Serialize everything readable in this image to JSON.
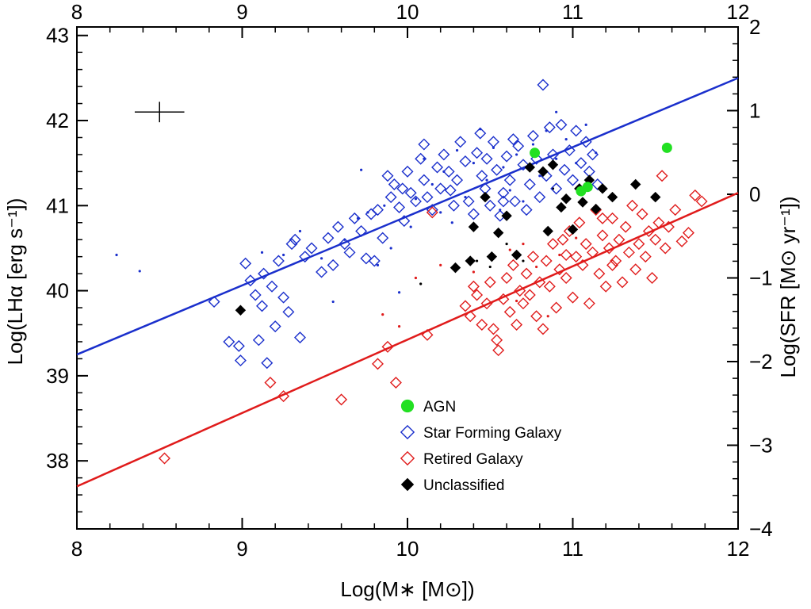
{
  "chart_data": {
    "type": "scatter",
    "xlabel": "Log(M∗ [M⊙])",
    "ylabel": "Log(LHα [erg s⁻¹])",
    "y2label": "Log(SFR [M⊙ yr⁻¹])",
    "xlim": [
      8,
      12
    ],
    "ylim": [
      37.2,
      43.1
    ],
    "y2lim": [
      -4,
      2
    ],
    "x_ticks": [
      8,
      9,
      10,
      11,
      12
    ],
    "y_ticks": [
      38,
      39,
      40,
      41,
      42,
      43
    ],
    "y2_ticks": [
      -4,
      -3,
      -2,
      -1,
      0,
      1,
      2
    ],
    "grid": false,
    "legend_position": "lower-center",
    "error_cross": {
      "x": 8.5,
      "y": 42.1,
      "dx": 0.15,
      "dy": 0.12
    },
    "fit_lines": [
      {
        "name": "Star Forming Galaxy",
        "color": "#1a2fcc",
        "x": [
          8,
          12
        ],
        "y": [
          39.25,
          42.5
        ]
      },
      {
        "name": "Retired Galaxy",
        "color": "#e01b1b",
        "x": [
          8,
          12
        ],
        "y": [
          37.7,
          41.15
        ]
      }
    ],
    "series": [
      {
        "name": "AGN",
        "marker": "circle",
        "color": "#22e022",
        "points": [
          [
            10.77,
            41.62
          ],
          [
            11.05,
            41.17
          ],
          [
            11.09,
            41.22
          ],
          [
            11.57,
            41.68
          ]
        ]
      },
      {
        "name": "Star Forming Galaxy",
        "marker": "diamond-open",
        "color": "#1a2fcc",
        "points": [
          [
            8.83,
            39.87
          ],
          [
            8.92,
            39.4
          ],
          [
            8.98,
            39.35
          ],
          [
            8.99,
            39.18
          ],
          [
            9.02,
            40.32
          ],
          [
            9.05,
            40.12
          ],
          [
            9.08,
            39.95
          ],
          [
            9.1,
            39.42
          ],
          [
            9.12,
            39.82
          ],
          [
            9.13,
            40.2
          ],
          [
            9.15,
            39.15
          ],
          [
            9.18,
            40.05
          ],
          [
            9.2,
            39.58
          ],
          [
            9.22,
            40.35
          ],
          [
            9.25,
            39.92
          ],
          [
            9.28,
            39.75
          ],
          [
            9.3,
            40.55
          ],
          [
            9.32,
            40.6
          ],
          [
            9.35,
            39.45
          ],
          [
            9.38,
            40.4
          ],
          [
            9.42,
            40.5
          ],
          [
            9.48,
            40.22
          ],
          [
            9.52,
            40.62
          ],
          [
            9.55,
            40.3
          ],
          [
            9.58,
            40.75
          ],
          [
            9.62,
            40.55
          ],
          [
            9.65,
            40.45
          ],
          [
            9.68,
            40.85
          ],
          [
            9.72,
            40.7
          ],
          [
            9.75,
            40.38
          ],
          [
            9.78,
            40.9
          ],
          [
            9.8,
            40.35
          ],
          [
            9.82,
            40.95
          ],
          [
            9.85,
            40.62
          ],
          [
            9.88,
            41.35
          ],
          [
            9.9,
            41.1
          ],
          [
            9.92,
            41.25
          ],
          [
            9.95,
            40.98
          ],
          [
            9.97,
            41.2
          ],
          [
            10.0,
            41.4
          ],
          [
            10.02,
            41.15
          ],
          [
            10.05,
            41.05
          ],
          [
            10.08,
            41.55
          ],
          [
            10.1,
            41.3
          ],
          [
            10.12,
            41.1
          ],
          [
            10.15,
            40.95
          ],
          [
            10.18,
            41.45
          ],
          [
            10.2,
            41.2
          ],
          [
            10.22,
            41.6
          ],
          [
            10.25,
            41.4
          ],
          [
            10.28,
            41.0
          ],
          [
            10.3,
            41.3
          ],
          [
            10.32,
            41.75
          ],
          [
            10.35,
            41.52
          ],
          [
            10.37,
            41.05
          ],
          [
            10.4,
            40.9
          ],
          [
            10.42,
            41.62
          ],
          [
            10.45,
            41.35
          ],
          [
            10.47,
            41.2
          ],
          [
            10.48,
            41.55
          ],
          [
            10.5,
            41.0
          ],
          [
            10.52,
            41.75
          ],
          [
            10.54,
            41.42
          ],
          [
            10.56,
            40.88
          ],
          [
            10.58,
            41.15
          ],
          [
            10.6,
            41.58
          ],
          [
            10.62,
            41.3
          ],
          [
            10.65,
            41.05
          ],
          [
            10.67,
            41.7
          ],
          [
            10.7,
            41.48
          ],
          [
            10.72,
            40.95
          ],
          [
            10.74,
            41.25
          ],
          [
            10.76,
            41.82
          ],
          [
            10.78,
            41.55
          ],
          [
            10.8,
            41.1
          ],
          [
            10.82,
            42.42
          ],
          [
            10.84,
            41.35
          ],
          [
            10.86,
            41.92
          ],
          [
            10.88,
            41.6
          ],
          [
            10.9,
            41.2
          ],
          [
            10.93,
            41.95
          ],
          [
            10.95,
            41.42
          ],
          [
            10.98,
            41.65
          ],
          [
            11.0,
            41.3
          ],
          [
            11.02,
            41.88
          ],
          [
            11.05,
            41.5
          ],
          [
            11.08,
            41.75
          ],
          [
            11.1,
            41.4
          ],
          [
            11.12,
            41.6
          ],
          [
            11.15,
            41.25
          ],
          [
            10.44,
            41.85
          ],
          [
            10.58,
            41.05
          ],
          [
            10.64,
            41.78
          ],
          [
            10.26,
            41.18
          ],
          [
            10.1,
            41.72
          ],
          [
            9.98,
            40.82
          ]
        ]
      },
      {
        "name": "Retired Galaxy",
        "marker": "diamond-open",
        "color": "#e01b1b",
        "points": [
          [
            8.53,
            38.03
          ],
          [
            9.17,
            38.92
          ],
          [
            9.25,
            38.76
          ],
          [
            9.6,
            38.72
          ],
          [
            9.82,
            39.14
          ],
          [
            9.88,
            39.34
          ],
          [
            9.93,
            38.92
          ],
          [
            10.12,
            39.48
          ],
          [
            10.15,
            40.92
          ],
          [
            10.35,
            39.82
          ],
          [
            10.38,
            39.7
          ],
          [
            10.4,
            40.05
          ],
          [
            10.42,
            39.95
          ],
          [
            10.45,
            39.6
          ],
          [
            10.48,
            39.85
          ],
          [
            10.5,
            40.1
          ],
          [
            10.52,
            39.55
          ],
          [
            10.54,
            39.42
          ],
          [
            10.55,
            39.3
          ],
          [
            10.58,
            39.9
          ],
          [
            10.6,
            40.15
          ],
          [
            10.62,
            39.75
          ],
          [
            10.64,
            40.3
          ],
          [
            10.66,
            39.6
          ],
          [
            10.68,
            40.0
          ],
          [
            10.7,
            39.85
          ],
          [
            10.72,
            40.2
          ],
          [
            10.74,
            39.95
          ],
          [
            10.76,
            40.4
          ],
          [
            10.78,
            39.7
          ],
          [
            10.8,
            40.1
          ],
          [
            10.82,
            39.55
          ],
          [
            10.84,
            40.35
          ],
          [
            10.86,
            40.05
          ],
          [
            10.88,
            40.55
          ],
          [
            10.9,
            39.8
          ],
          [
            10.92,
            40.25
          ],
          [
            10.94,
            40.6
          ],
          [
            10.96,
            40.15
          ],
          [
            10.98,
            40.7
          ],
          [
            11.0,
            39.92
          ],
          [
            11.02,
            40.4
          ],
          [
            11.04,
            40.8
          ],
          [
            11.06,
            40.3
          ],
          [
            11.08,
            40.55
          ],
          [
            11.1,
            39.85
          ],
          [
            11.12,
            40.45
          ],
          [
            11.14,
            40.95
          ],
          [
            11.16,
            40.2
          ],
          [
            11.18,
            40.65
          ],
          [
            11.2,
            40.05
          ],
          [
            11.22,
            40.5
          ],
          [
            11.24,
            40.85
          ],
          [
            11.26,
            40.35
          ],
          [
            11.28,
            40.6
          ],
          [
            11.3,
            40.1
          ],
          [
            11.32,
            40.75
          ],
          [
            11.34,
            40.45
          ],
          [
            11.36,
            41.0
          ],
          [
            11.38,
            40.25
          ],
          [
            11.4,
            40.55
          ],
          [
            11.42,
            40.9
          ],
          [
            11.44,
            40.4
          ],
          [
            11.46,
            40.7
          ],
          [
            11.48,
            40.15
          ],
          [
            11.5,
            40.6
          ],
          [
            11.52,
            40.8
          ],
          [
            11.54,
            41.35
          ],
          [
            11.56,
            40.5
          ],
          [
            11.58,
            40.75
          ],
          [
            11.62,
            40.95
          ],
          [
            11.66,
            40.58
          ],
          [
            11.7,
            40.68
          ],
          [
            11.74,
            41.12
          ],
          [
            11.78,
            41.05
          ],
          [
            11.18,
            40.85
          ],
          [
            11.24,
            40.3
          ],
          [
            10.96,
            40.42
          ]
        ]
      },
      {
        "name": "Unclassified",
        "marker": "diamond-filled",
        "color": "#000000",
        "points": [
          [
            8.99,
            39.77
          ],
          [
            10.29,
            40.27
          ],
          [
            10.38,
            40.35
          ],
          [
            10.4,
            40.75
          ],
          [
            10.47,
            41.1
          ],
          [
            10.51,
            40.4
          ],
          [
            10.55,
            40.68
          ],
          [
            10.6,
            40.88
          ],
          [
            10.66,
            40.42
          ],
          [
            10.74,
            41.45
          ],
          [
            10.82,
            41.4
          ],
          [
            10.85,
            40.7
          ],
          [
            10.88,
            41.48
          ],
          [
            10.93,
            40.98
          ],
          [
            10.96,
            41.08
          ],
          [
            11.0,
            40.72
          ],
          [
            11.04,
            41.2
          ],
          [
            11.06,
            41.04
          ],
          [
            11.1,
            41.3
          ],
          [
            11.14,
            40.96
          ],
          [
            11.18,
            41.2
          ],
          [
            11.24,
            41.1
          ],
          [
            11.38,
            41.25
          ],
          [
            11.5,
            41.1
          ]
        ]
      },
      {
        "name": "dots",
        "marker": "dot",
        "color": "#1a2fcc",
        "points": [
          [
            8.24,
            40.42
          ],
          [
            8.38,
            40.23
          ],
          [
            9.12,
            40.45
          ],
          [
            9.25,
            40.42
          ],
          [
            9.35,
            40.7
          ],
          [
            9.48,
            40.38
          ],
          [
            9.55,
            39.87
          ],
          [
            9.62,
            40.6
          ],
          [
            9.7,
            40.85
          ],
          [
            9.76,
            40.92
          ],
          [
            9.82,
            40.3
          ],
          [
            9.9,
            40.5
          ],
          [
            9.95,
            39.98
          ],
          [
            10.02,
            40.75
          ],
          [
            10.05,
            41.08
          ],
          [
            10.1,
            41.55
          ],
          [
            10.15,
            41.25
          ],
          [
            10.22,
            41.4
          ],
          [
            10.27,
            40.8
          ],
          [
            10.3,
            41.65
          ],
          [
            10.35,
            41.1
          ],
          [
            10.4,
            41.5
          ],
          [
            10.44,
            41.9
          ],
          [
            10.48,
            41.3
          ],
          [
            10.52,
            41.68
          ],
          [
            10.58,
            41.45
          ],
          [
            10.62,
            41.18
          ],
          [
            10.66,
            41.6
          ],
          [
            10.7,
            41.05
          ],
          [
            10.76,
            41.72
          ],
          [
            10.8,
            41.35
          ],
          [
            10.84,
            41.88
          ],
          [
            10.9,
            41.55
          ],
          [
            10.96,
            41.78
          ],
          [
            11.02,
            41.5
          ],
          [
            11.08,
            41.95
          ],
          [
            11.14,
            41.62
          ],
          [
            9.86,
            41.0
          ],
          [
            9.72,
            41.42
          ],
          [
            10.2,
            40.92
          ],
          [
            10.56,
            40.95
          ],
          [
            10.9,
            42.1
          ]
        ]
      },
      {
        "name": "dots-red",
        "marker": "dot",
        "color": "#e01b1b",
        "points": [
          [
            10.05,
            40.15
          ],
          [
            9.85,
            39.72
          ],
          [
            9.95,
            39.58
          ],
          [
            10.2,
            40.3
          ],
          [
            10.4,
            40.22
          ],
          [
            10.62,
            40.48
          ],
          [
            10.78,
            40.28
          ],
          [
            10.92,
            40.42
          ],
          [
            10.66,
            39.88
          ],
          [
            10.85,
            39.7
          ],
          [
            11.02,
            40.62
          ],
          [
            10.7,
            40.55
          ]
        ]
      },
      {
        "name": "dots-black",
        "marker": "dot",
        "color": "#000000",
        "points": [
          [
            10.08,
            40.08
          ],
          [
            10.42,
            40.35
          ],
          [
            10.5,
            40.28
          ],
          [
            10.6,
            40.55
          ],
          [
            10.7,
            40.35
          ],
          [
            10.88,
            41.2
          ]
        ]
      }
    ],
    "legend": [
      {
        "label": "AGN",
        "marker": "circle",
        "color": "#22e022"
      },
      {
        "label": "Star Forming Galaxy",
        "marker": "diamond-open",
        "color": "#1a2fcc"
      },
      {
        "label": "Retired Galaxy",
        "marker": "diamond-open",
        "color": "#e01b1b"
      },
      {
        "label": "Unclassified",
        "marker": "diamond-filled",
        "color": "#000000"
      }
    ]
  }
}
